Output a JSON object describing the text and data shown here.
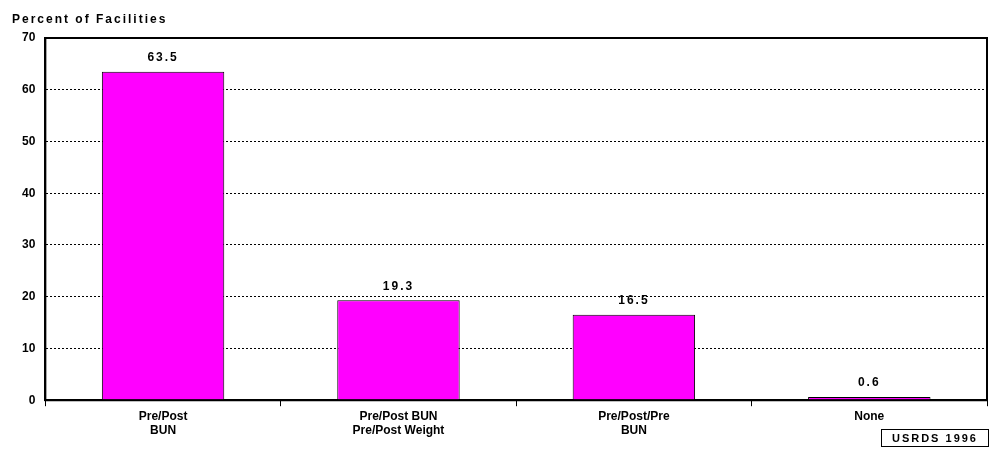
{
  "chart_data": {
    "type": "bar",
    "ylabel": "Percent of Facilities",
    "categories": [
      "Pre/Post\nBUN",
      "Pre/Post BUN\nPre/Post Weight",
      "Pre/Post/Pre\nBUN",
      "None"
    ],
    "values": [
      63.5,
      19.3,
      16.5,
      0.6
    ],
    "color": "#ff00ff",
    "ylim": [
      0,
      70
    ],
    "yticks": [
      0,
      10,
      20,
      30,
      40,
      50,
      60,
      70
    ],
    "grid": "y",
    "data_labels": true,
    "legend": false,
    "annotations": [
      "USRDS 1996"
    ]
  }
}
